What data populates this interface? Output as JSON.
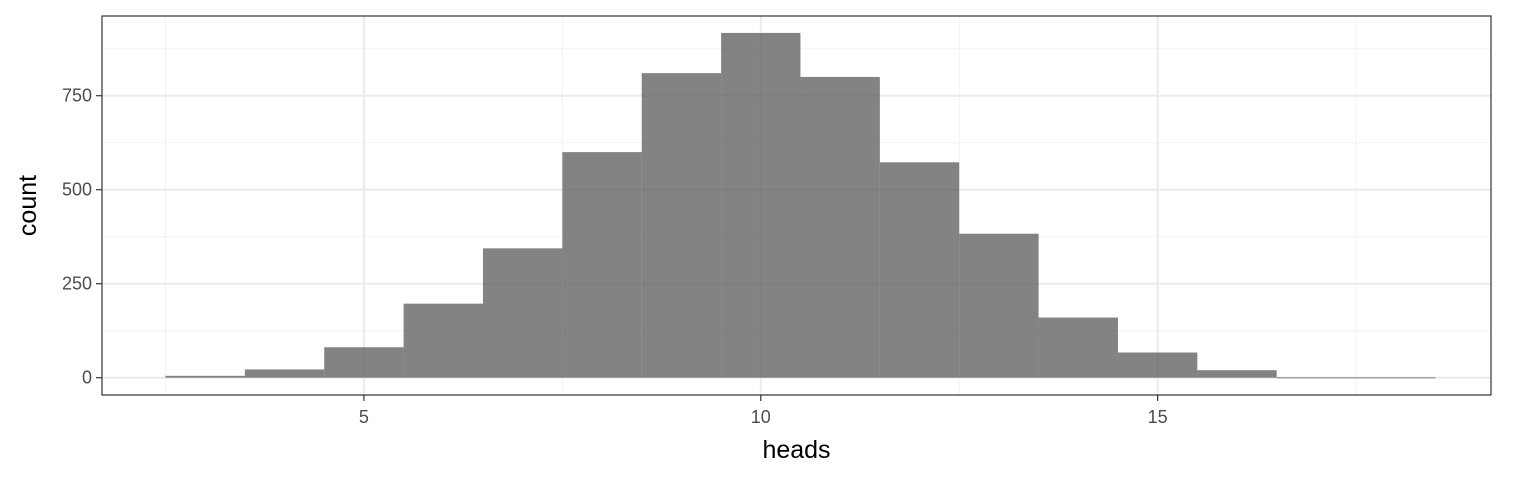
{
  "chart_data": {
    "type": "bar",
    "subtype": "histogram",
    "title": "",
    "xlabel": "heads",
    "ylabel": "count",
    "bin_width": 1,
    "bins": [
      {
        "x": 3,
        "count": 5
      },
      {
        "x": 4,
        "count": 22
      },
      {
        "x": 5,
        "count": 81
      },
      {
        "x": 6,
        "count": 197
      },
      {
        "x": 7,
        "count": 344
      },
      {
        "x": 8,
        "count": 600
      },
      {
        "x": 9,
        "count": 810
      },
      {
        "x": 10,
        "count": 917
      },
      {
        "x": 11,
        "count": 800
      },
      {
        "x": 12,
        "count": 573
      },
      {
        "x": 13,
        "count": 383
      },
      {
        "x": 14,
        "count": 160
      },
      {
        "x": 15,
        "count": 67
      },
      {
        "x": 16,
        "count": 20
      },
      {
        "x": 17,
        "count": 1
      },
      {
        "x": 18,
        "count": 1
      }
    ],
    "xlim": [
      1.7,
      19.2
    ],
    "ylim": [
      -46,
      962
    ],
    "x_ticks": [
      5,
      10,
      15
    ],
    "x_tick_labels": [
      "5",
      "10",
      "15"
    ],
    "x_minor_ticks": [
      2.5,
      7.5,
      12.5,
      17.5
    ],
    "y_ticks": [
      0,
      250,
      500,
      750
    ],
    "y_tick_labels": [
      "0",
      "250",
      "500",
      "750"
    ],
    "y_minor_ticks": [
      125,
      375,
      625,
      875
    ],
    "grid": true,
    "legend": "none",
    "bar_color": "#595959",
    "bar_opacity": 0.75,
    "panel_border_color": "#333333",
    "grid_major_color": "#ebebeb",
    "grid_minor_color": "#f2f2f2"
  }
}
